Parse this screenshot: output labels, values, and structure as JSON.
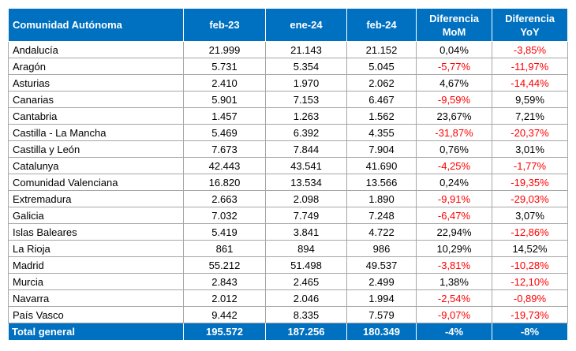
{
  "colors": {
    "header_bg": "#0070c0",
    "header_text": "#ffffff",
    "negative": "#ff0000",
    "grid": "#a6a6a6"
  },
  "headers": [
    "Comunidad Autónoma",
    "feb-23",
    "ene-24",
    "feb-24",
    "Diferencia\nMoM",
    "Diferencia\nYoY"
  ],
  "rows": [
    [
      "Andalucía",
      "21.999",
      "21.143",
      "21.152",
      "0,04%",
      "-3,85%"
    ],
    [
      "Aragón",
      "5.731",
      "5.354",
      "5.045",
      "-5,77%",
      "-11,97%"
    ],
    [
      "Asturias",
      "2.410",
      "1.970",
      "2.062",
      "4,67%",
      "-14,44%"
    ],
    [
      "Canarias",
      "5.901",
      "7.153",
      "6.467",
      "-9,59%",
      "9,59%"
    ],
    [
      "Cantabria",
      "1.457",
      "1.263",
      "1.562",
      "23,67%",
      "7,21%"
    ],
    [
      "Castilla - La Mancha",
      "5.469",
      "6.392",
      "4.355",
      "-31,87%",
      "-20,37%"
    ],
    [
      "Castilla y León",
      "7.673",
      "7.844",
      "7.904",
      "0,76%",
      "3,01%"
    ],
    [
      "Catalunya",
      "42.443",
      "43.541",
      "41.690",
      "-4,25%",
      "-1,77%"
    ],
    [
      "Comunidad Valenciana",
      "16.820",
      "13.534",
      "13.566",
      "0,24%",
      "-19,35%"
    ],
    [
      "Extremadura",
      "2.663",
      "2.098",
      "1.890",
      "-9,91%",
      "-29,03%"
    ],
    [
      "Galicia",
      "7.032",
      "7.749",
      "7.248",
      "-6,47%",
      "3,07%"
    ],
    [
      "Islas Baleares",
      "5.419",
      "3.841",
      "4.722",
      "22,94%",
      "-12,86%"
    ],
    [
      "La Rioja",
      "861",
      "894",
      "986",
      "10,29%",
      "14,52%"
    ],
    [
      "Madrid",
      "55.212",
      "51.498",
      "49.537",
      "-3,81%",
      "-10,28%"
    ],
    [
      "Murcia",
      "2.843",
      "2.465",
      "2.499",
      "1,38%",
      "-12,10%"
    ],
    [
      "Navarra",
      "2.012",
      "2.046",
      "1.994",
      "-2,54%",
      "-0,89%"
    ],
    [
      "País Vasco",
      "9.442",
      "8.335",
      "7.579",
      "-9,07%",
      "-19,73%"
    ]
  ],
  "total": [
    "Total general",
    "195.572",
    "187.256",
    "180.349",
    "-4%",
    "-8%"
  ]
}
